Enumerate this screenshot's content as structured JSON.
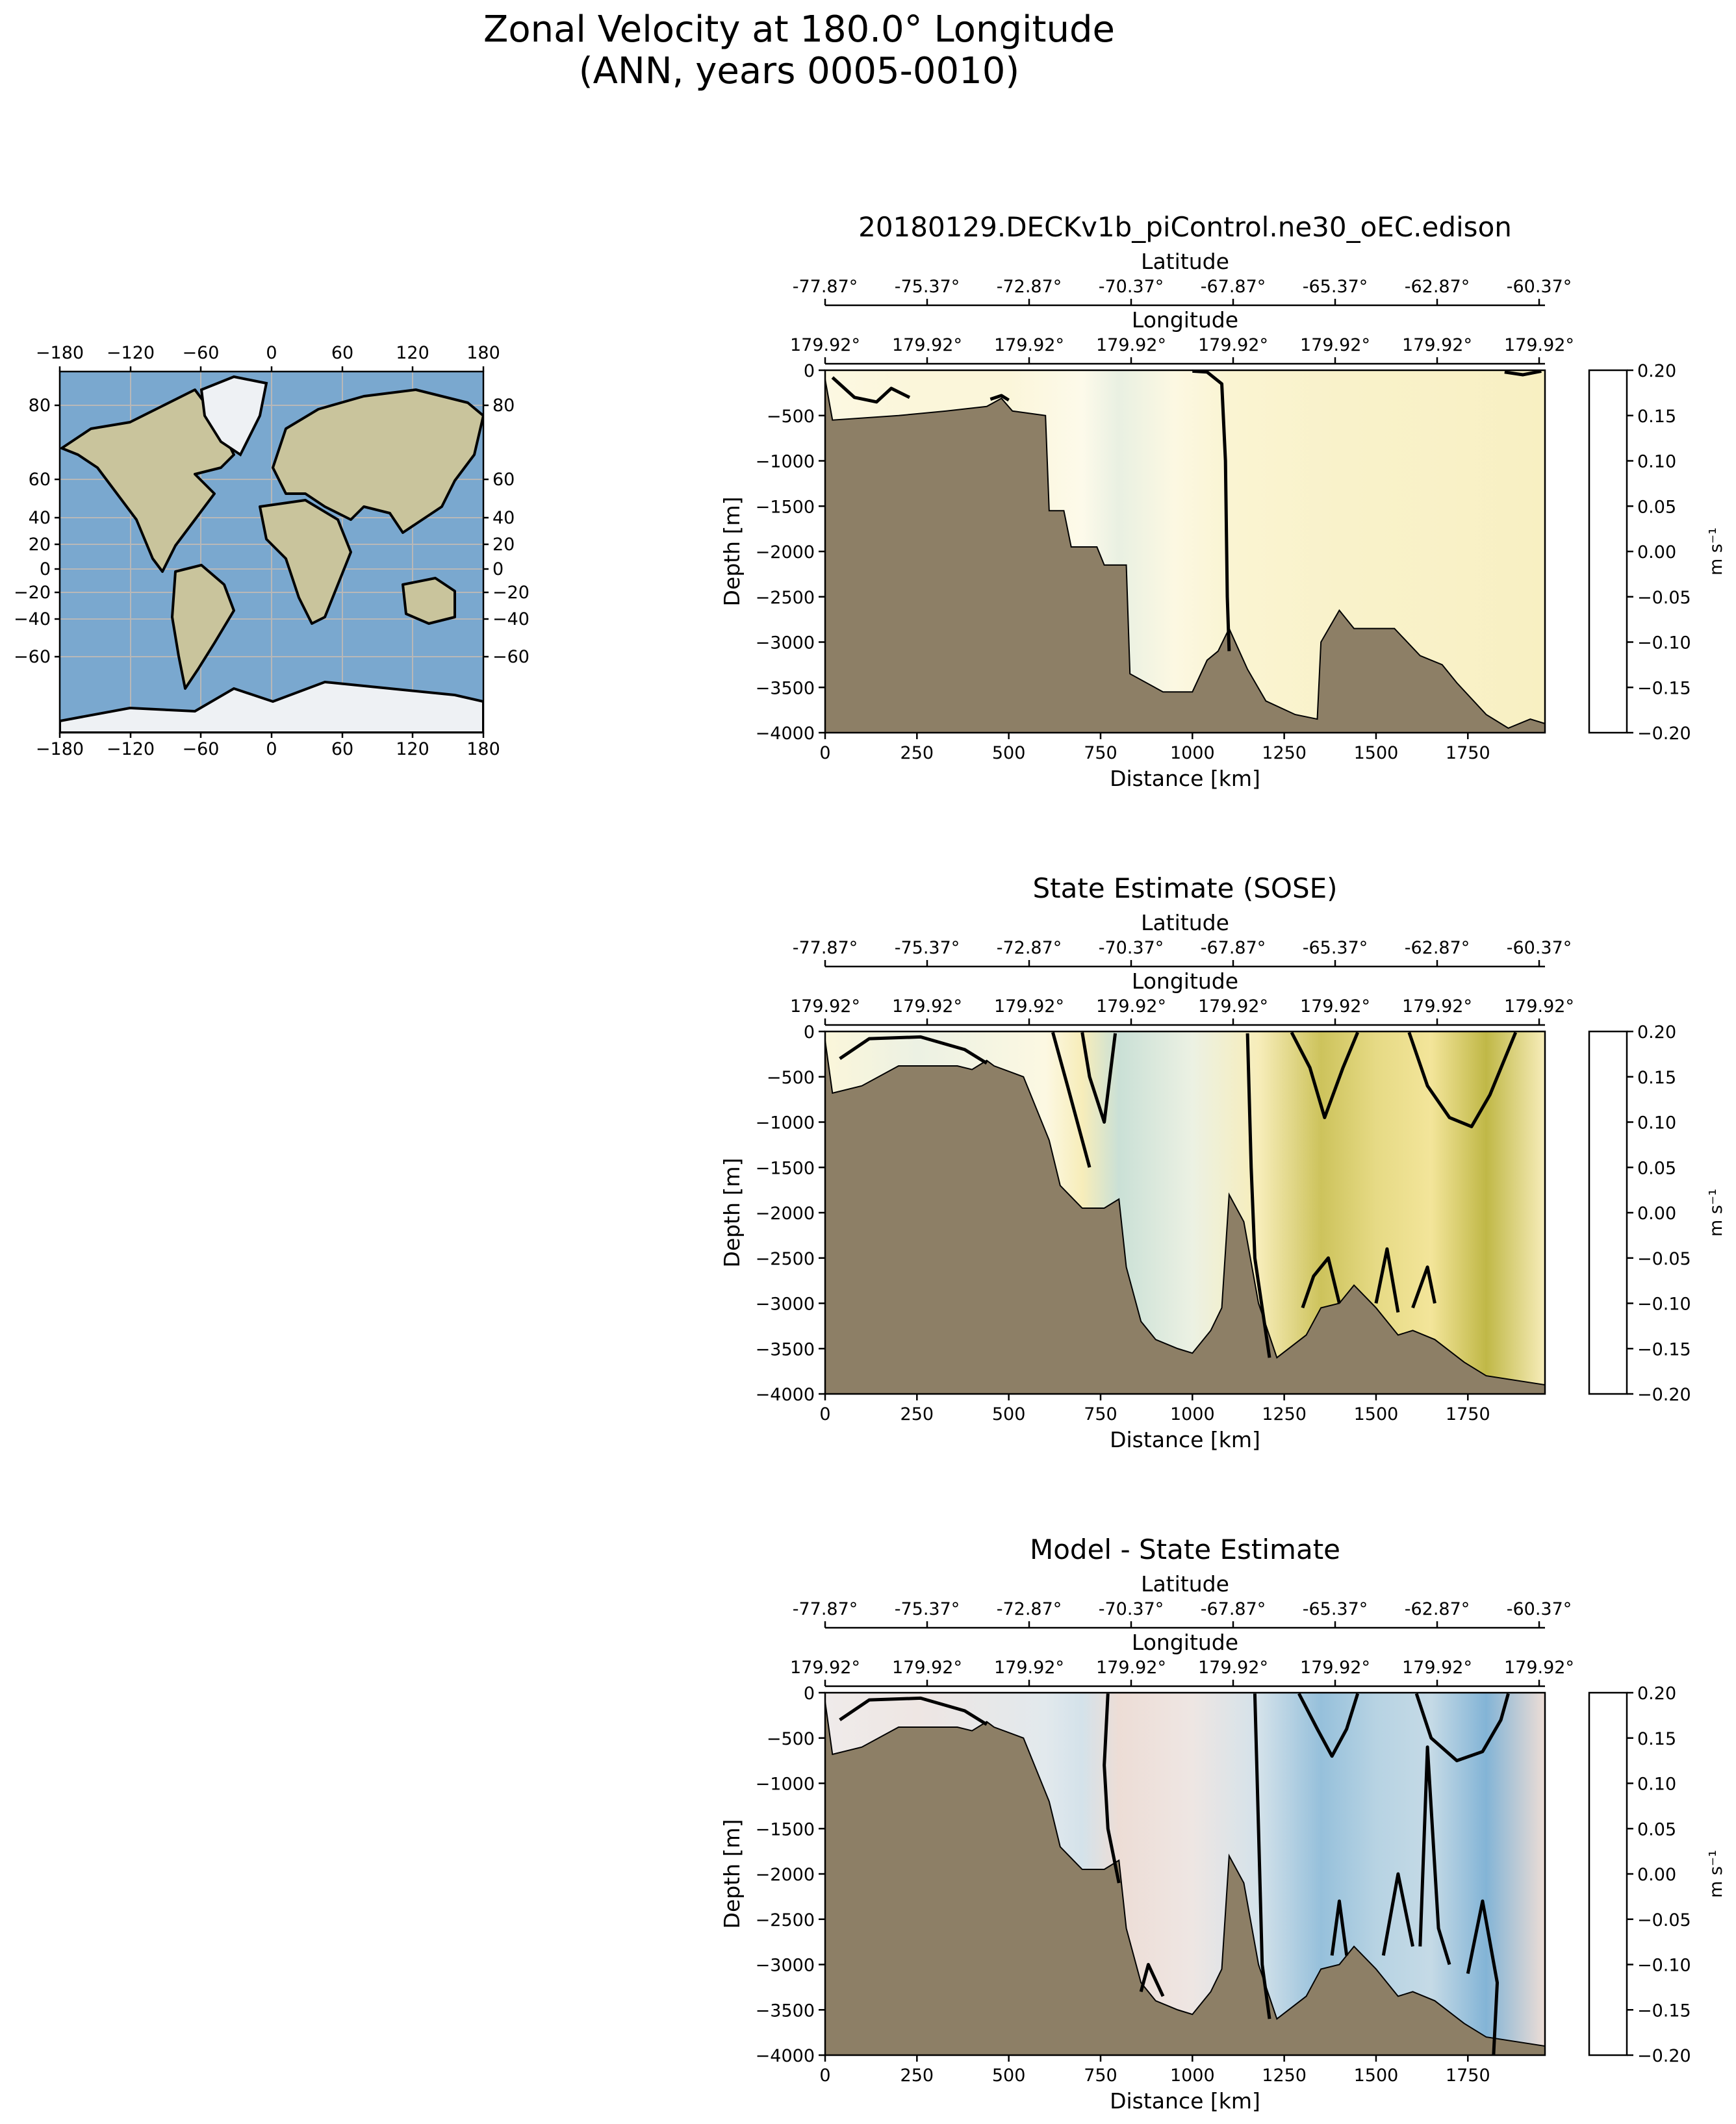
{
  "figure": {
    "title_line1": "Zonal Velocity at 180.0° Longitude",
    "title_line2": "(ANN, years 0005-0010)"
  },
  "colors": {
    "land": "#8d7f66",
    "contour": "#000000",
    "delta_cmap": [
      "#141a3f",
      "#2a4f9c",
      "#4a8fc6",
      "#a9cce0",
      "#f0f0f0",
      "#e8c0b0",
      "#c55a4a",
      "#8a1a2a",
      "#4a0a14"
    ],
    "velocity_cmap": [
      "#10173f",
      "#1f4f8f",
      "#2f8ea0",
      "#a8cfc8",
      "#fdfaea",
      "#f3e59a",
      "#b3ad32",
      "#3f8a2a",
      "#142a18"
    ]
  },
  "map": {
    "top_ticks": [
      "−180",
      "−120",
      "−60",
      "0",
      "60",
      "120",
      "180"
    ],
    "bottom_ticks": [
      "−180",
      "−120",
      "−60",
      "0",
      "60",
      "120",
      "180"
    ],
    "left_ticks": [
      "80",
      "60",
      "40",
      "20",
      "0",
      "−20",
      "−40",
      "−60"
    ],
    "right_ticks": [
      "80",
      "60",
      "40",
      "20",
      "0",
      "−20",
      "−40",
      "−60"
    ]
  },
  "chart_data": [
    {
      "type": "heatmap",
      "title": "20180129.DECKv1b_piControl.ne30_oEC.edison",
      "xlabel": "Distance [km]",
      "ylabel": "Depth [m]",
      "secondary_x_top1": "Latitude",
      "secondary_x_top2": "Longitude",
      "latitude_ticks": [
        "-77.87°",
        "-75.37°",
        "-72.87°",
        "-70.37°",
        "-67.87°",
        "-65.37°",
        "-62.87°",
        "-60.37°"
      ],
      "longitude_ticks": [
        "179.92°",
        "179.92°",
        "179.92°",
        "179.92°",
        "179.92°",
        "179.92°",
        "179.92°",
        "179.92°"
      ],
      "x_ticks": [
        "0",
        "250",
        "500",
        "750",
        "1000",
        "1250",
        "1500",
        "1750"
      ],
      "y_ticks": [
        "0",
        "−500",
        "−1000",
        "−1500",
        "−2000",
        "−2500",
        "−3000",
        "−3500",
        "−4000"
      ],
      "xlim": [
        0,
        1960
      ],
      "ylim": [
        -4000,
        0
      ],
      "colorbar_label": "m s⁻¹",
      "colorbar_ticks": [
        "0.20",
        "0.15",
        "0.10",
        "0.05",
        "0.00",
        "−0.05",
        "−0.10",
        "−0.15",
        "−0.20"
      ],
      "colorbar_range": [
        -0.2,
        0.2
      ],
      "colormap": "velocity",
      "field_columns": [
        {
          "x": 0,
          "value": 0.005
        },
        {
          "x": 250,
          "value": 0.01
        },
        {
          "x": 500,
          "value": 0.01
        },
        {
          "x": 700,
          "value": 0.0
        },
        {
          "x": 800,
          "value": -0.012
        },
        {
          "x": 950,
          "value": 0.005
        },
        {
          "x": 1100,
          "value": 0.015
        },
        {
          "x": 1400,
          "value": 0.02
        },
        {
          "x": 1700,
          "value": 0.022
        },
        {
          "x": 1960,
          "value": 0.025
        }
      ],
      "bathymetry": [
        [
          0,
          -100
        ],
        [
          20,
          -550
        ],
        [
          200,
          -500
        ],
        [
          330,
          -450
        ],
        [
          440,
          -400
        ],
        [
          480,
          -310
        ],
        [
          510,
          -450
        ],
        [
          600,
          -500
        ],
        [
          610,
          -1550
        ],
        [
          650,
          -1550
        ],
        [
          670,
          -1950
        ],
        [
          740,
          -1950
        ],
        [
          760,
          -2150
        ],
        [
          820,
          -2150
        ],
        [
          830,
          -3350
        ],
        [
          920,
          -3550
        ],
        [
          1000,
          -3550
        ],
        [
          1040,
          -3200
        ],
        [
          1070,
          -3100
        ],
        [
          1100,
          -2850
        ],
        [
          1150,
          -3300
        ],
        [
          1200,
          -3650
        ],
        [
          1280,
          -3800
        ],
        [
          1340,
          -3850
        ],
        [
          1350,
          -3000
        ],
        [
          1400,
          -2650
        ],
        [
          1440,
          -2850
        ],
        [
          1550,
          -2850
        ],
        [
          1620,
          -3150
        ],
        [
          1680,
          -3250
        ],
        [
          1720,
          -3450
        ],
        [
          1800,
          -3800
        ],
        [
          1860,
          -3950
        ],
        [
          1920,
          -3850
        ],
        [
          1960,
          -3900
        ]
      ],
      "contours": [
        [
          [
            1000,
            -10
          ],
          [
            1040,
            -20
          ],
          [
            1080,
            -150
          ],
          [
            1090,
            -1000
          ],
          [
            1095,
            -2500
          ],
          [
            1100,
            -3100
          ]
        ],
        [
          [
            20,
            -80
          ],
          [
            80,
            -300
          ],
          [
            140,
            -350
          ],
          [
            180,
            -200
          ],
          [
            230,
            -300
          ]
        ],
        [
          [
            450,
            -320
          ],
          [
            480,
            -280
          ],
          [
            500,
            -330
          ]
        ],
        [
          [
            1850,
            -20
          ],
          [
            1900,
            -50
          ],
          [
            1950,
            -10
          ]
        ]
      ]
    },
    {
      "type": "heatmap",
      "title": "State Estimate (SOSE)",
      "xlabel": "Distance [km]",
      "ylabel": "Depth [m]",
      "secondary_x_top1": "Latitude",
      "secondary_x_top2": "Longitude",
      "latitude_ticks": [
        "-77.87°",
        "-75.37°",
        "-72.87°",
        "-70.37°",
        "-67.87°",
        "-65.37°",
        "-62.87°",
        "-60.37°"
      ],
      "longitude_ticks": [
        "179.92°",
        "179.92°",
        "179.92°",
        "179.92°",
        "179.92°",
        "179.92°",
        "179.92°",
        "179.92°"
      ],
      "x_ticks": [
        "0",
        "250",
        "500",
        "750",
        "1000",
        "1250",
        "1500",
        "1750"
      ],
      "y_ticks": [
        "0",
        "−500",
        "−1000",
        "−1500",
        "−2000",
        "−2500",
        "−3000",
        "−3500",
        "−4000"
      ],
      "xlim": [
        0,
        1960
      ],
      "ylim": [
        -4000,
        0
      ],
      "colorbar_label": "m s⁻¹",
      "colorbar_ticks": [
        "0.20",
        "0.15",
        "0.10",
        "0.05",
        "0.00",
        "−0.05",
        "−0.10",
        "−0.15",
        "−0.20"
      ],
      "colorbar_range": [
        -0.2,
        0.2
      ],
      "colormap": "velocity",
      "field_columns": [
        {
          "x": 0,
          "value": 0.01
        },
        {
          "x": 250,
          "value": -0.01
        },
        {
          "x": 600,
          "value": 0.005
        },
        {
          "x": 700,
          "value": 0.03
        },
        {
          "x": 800,
          "value": -0.03
        },
        {
          "x": 1000,
          "value": -0.01
        },
        {
          "x": 1180,
          "value": 0.03
        },
        {
          "x": 1350,
          "value": 0.08
        },
        {
          "x": 1500,
          "value": 0.06
        },
        {
          "x": 1650,
          "value": 0.05
        },
        {
          "x": 1800,
          "value": 0.09
        },
        {
          "x": 1960,
          "value": 0.03
        }
      ],
      "bathymetry": [
        [
          0,
          -100
        ],
        [
          20,
          -680
        ],
        [
          100,
          -600
        ],
        [
          200,
          -380
        ],
        [
          360,
          -380
        ],
        [
          400,
          -420
        ],
        [
          440,
          -320
        ],
        [
          460,
          -380
        ],
        [
          540,
          -500
        ],
        [
          610,
          -1200
        ],
        [
          640,
          -1700
        ],
        [
          700,
          -1950
        ],
        [
          760,
          -1950
        ],
        [
          800,
          -1850
        ],
        [
          820,
          -2600
        ],
        [
          860,
          -3200
        ],
        [
          900,
          -3400
        ],
        [
          960,
          -3500
        ],
        [
          1000,
          -3550
        ],
        [
          1050,
          -3300
        ],
        [
          1080,
          -3050
        ],
        [
          1100,
          -1800
        ],
        [
          1140,
          -2100
        ],
        [
          1180,
          -3000
        ],
        [
          1230,
          -3600
        ],
        [
          1310,
          -3350
        ],
        [
          1350,
          -3050
        ],
        [
          1400,
          -3000
        ],
        [
          1440,
          -2800
        ],
        [
          1500,
          -3050
        ],
        [
          1560,
          -3350
        ],
        [
          1600,
          -3300
        ],
        [
          1660,
          -3400
        ],
        [
          1740,
          -3650
        ],
        [
          1800,
          -3800
        ],
        [
          1960,
          -3900
        ]
      ],
      "contours": [
        [
          [
            1150,
            -20
          ],
          [
            1160,
            -1500
          ],
          [
            1170,
            -2500
          ],
          [
            1210,
            -3600
          ]
        ],
        [
          [
            1270,
            -10
          ],
          [
            1320,
            -400
          ],
          [
            1360,
            -950
          ],
          [
            1410,
            -400
          ],
          [
            1450,
            -10
          ]
        ],
        [
          [
            1590,
            -10
          ],
          [
            1640,
            -600
          ],
          [
            1700,
            -950
          ],
          [
            1760,
            -1050
          ],
          [
            1810,
            -700
          ],
          [
            1880,
            -10
          ]
        ],
        [
          [
            620,
            -10
          ],
          [
            660,
            -600
          ],
          [
            700,
            -1200
          ],
          [
            720,
            -1500
          ]
        ],
        [
          [
            700,
            -10
          ],
          [
            720,
            -500
          ],
          [
            760,
            -1000
          ],
          [
            790,
            -20
          ]
        ],
        [
          [
            1300,
            -3050
          ],
          [
            1330,
            -2700
          ],
          [
            1370,
            -2500
          ],
          [
            1400,
            -3000
          ]
        ],
        [
          [
            1500,
            -3000
          ],
          [
            1530,
            -2400
          ],
          [
            1560,
            -3100
          ]
        ],
        [
          [
            1600,
            -3050
          ],
          [
            1640,
            -2600
          ],
          [
            1660,
            -3000
          ]
        ],
        [
          [
            40,
            -300
          ],
          [
            120,
            -80
          ],
          [
            260,
            -60
          ],
          [
            380,
            -200
          ],
          [
            440,
            -350
          ]
        ]
      ]
    },
    {
      "type": "heatmap",
      "title": "Model - State Estimate",
      "xlabel": "Distance [km]",
      "ylabel": "Depth [m]",
      "secondary_x_top1": "Latitude",
      "secondary_x_top2": "Longitude",
      "latitude_ticks": [
        "-77.87°",
        "-75.37°",
        "-72.87°",
        "-70.37°",
        "-67.87°",
        "-65.37°",
        "-62.87°",
        "-60.37°"
      ],
      "longitude_ticks": [
        "179.92°",
        "179.92°",
        "179.92°",
        "179.92°",
        "179.92°",
        "179.92°",
        "179.92°",
        "179.92°"
      ],
      "x_ticks": [
        "0",
        "250",
        "500",
        "750",
        "1000",
        "1250",
        "1500",
        "1750"
      ],
      "y_ticks": [
        "0",
        "−500",
        "−1000",
        "−1500",
        "−2000",
        "−2500",
        "−3000",
        "−3500",
        "−4000"
      ],
      "xlim": [
        0,
        1960
      ],
      "ylim": [
        -4000,
        0
      ],
      "colorbar_label": "m s⁻¹",
      "colorbar_ticks": [
        "0.20",
        "0.15",
        "0.10",
        "0.05",
        "0.00",
        "−0.05",
        "−0.10",
        "−0.15",
        "−0.20"
      ],
      "colorbar_range": [
        -0.2,
        0.2
      ],
      "colormap": "delta",
      "field_columns": [
        {
          "x": 0,
          "value": 0.005
        },
        {
          "x": 250,
          "value": 0.01
        },
        {
          "x": 600,
          "value": -0.01
        },
        {
          "x": 700,
          "value": -0.02
        },
        {
          "x": 800,
          "value": 0.02
        },
        {
          "x": 1000,
          "value": 0.01
        },
        {
          "x": 1180,
          "value": -0.02
        },
        {
          "x": 1350,
          "value": -0.06
        },
        {
          "x": 1500,
          "value": -0.04
        },
        {
          "x": 1650,
          "value": -0.03
        },
        {
          "x": 1800,
          "value": -0.07
        },
        {
          "x": 1960,
          "value": 0.02
        }
      ],
      "bathymetry": [
        [
          0,
          -100
        ],
        [
          20,
          -680
        ],
        [
          100,
          -600
        ],
        [
          200,
          -380
        ],
        [
          360,
          -380
        ],
        [
          400,
          -420
        ],
        [
          440,
          -320
        ],
        [
          460,
          -380
        ],
        [
          540,
          -500
        ],
        [
          610,
          -1200
        ],
        [
          640,
          -1700
        ],
        [
          700,
          -1950
        ],
        [
          760,
          -1950
        ],
        [
          800,
          -1850
        ],
        [
          820,
          -2600
        ],
        [
          860,
          -3200
        ],
        [
          900,
          -3400
        ],
        [
          960,
          -3500
        ],
        [
          1000,
          -3550
        ],
        [
          1050,
          -3300
        ],
        [
          1080,
          -3050
        ],
        [
          1100,
          -1800
        ],
        [
          1140,
          -2100
        ],
        [
          1180,
          -3000
        ],
        [
          1230,
          -3600
        ],
        [
          1310,
          -3350
        ],
        [
          1350,
          -3050
        ],
        [
          1400,
          -3000
        ],
        [
          1440,
          -2800
        ],
        [
          1500,
          -3050
        ],
        [
          1560,
          -3350
        ],
        [
          1600,
          -3300
        ],
        [
          1660,
          -3400
        ],
        [
          1740,
          -3650
        ],
        [
          1800,
          -3800
        ],
        [
          1960,
          -3900
        ]
      ],
      "contours": [
        [
          [
            770,
            -10
          ],
          [
            760,
            -800
          ],
          [
            770,
            -1500
          ],
          [
            800,
            -2100
          ]
        ],
        [
          [
            1170,
            -10
          ],
          [
            1180,
            -1500
          ],
          [
            1190,
            -3000
          ],
          [
            1210,
            -3600
          ]
        ],
        [
          [
            1290,
            -10
          ],
          [
            1340,
            -400
          ],
          [
            1380,
            -700
          ],
          [
            1420,
            -400
          ],
          [
            1450,
            -10
          ]
        ],
        [
          [
            1610,
            -10
          ],
          [
            1650,
            -500
          ],
          [
            1720,
            -750
          ],
          [
            1790,
            -650
          ],
          [
            1840,
            -300
          ],
          [
            1860,
            -10
          ]
        ],
        [
          [
            1380,
            -2900
          ],
          [
            1400,
            -2300
          ],
          [
            1420,
            -2900
          ]
        ],
        [
          [
            1520,
            -2900
          ],
          [
            1560,
            -2000
          ],
          [
            1600,
            -2800
          ]
        ],
        [
          [
            1620,
            -2800
          ],
          [
            1640,
            -600
          ],
          [
            1670,
            -2600
          ],
          [
            1700,
            -3000
          ]
        ],
        [
          [
            1750,
            -3100
          ],
          [
            1790,
            -2300
          ],
          [
            1830,
            -3200
          ],
          [
            1820,
            -4000
          ]
        ],
        [
          [
            40,
            -300
          ],
          [
            120,
            -80
          ],
          [
            260,
            -60
          ],
          [
            380,
            -200
          ],
          [
            440,
            -350
          ]
        ],
        [
          [
            860,
            -3300
          ],
          [
            880,
            -3000
          ],
          [
            920,
            -3350
          ]
        ]
      ]
    }
  ]
}
